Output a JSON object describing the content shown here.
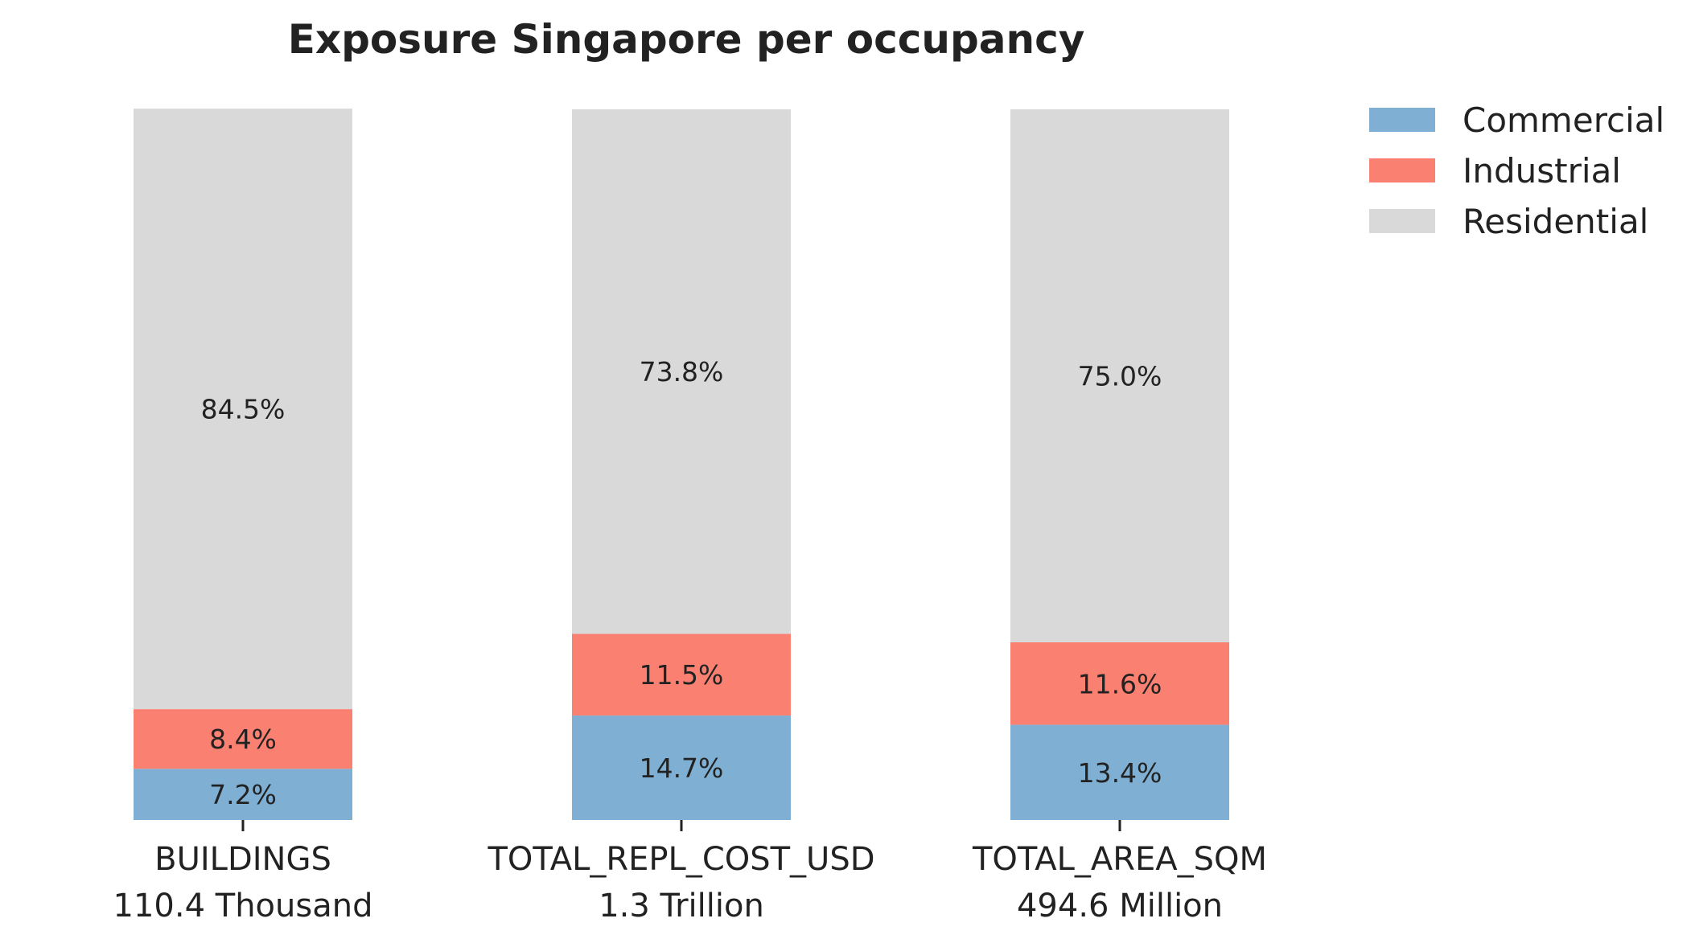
{
  "chart_data": {
    "type": "bar",
    "stacked": true,
    "title": "Exposure Singapore per occupancy",
    "categories": [
      "BUILDINGS",
      "TOTAL_REPL_COST_USD",
      "TOTAL_AREA_SQM"
    ],
    "category_totals": [
      "110.4 Thousand",
      "1.3 Trillion",
      "494.6 Million"
    ],
    "series": [
      {
        "name": "Commercial",
        "color": "#7fb0d3",
        "values": [
          7.2,
          14.7,
          13.4
        ],
        "labels": [
          "7.2%",
          "14.7%",
          "13.4%"
        ]
      },
      {
        "name": "Industrial",
        "color": "#fa8072",
        "values": [
          8.4,
          11.5,
          11.6
        ],
        "labels": [
          "8.4%",
          "11.5%",
          "11.6%"
        ]
      },
      {
        "name": "Residential",
        "color": "#d9d9d9",
        "values": [
          84.5,
          73.8,
          75.0
        ],
        "labels": [
          "84.5%",
          "73.8%",
          "75.0%"
        ]
      }
    ],
    "ylim": [
      0,
      100
    ],
    "grid": false,
    "legend_position": "top-right"
  }
}
